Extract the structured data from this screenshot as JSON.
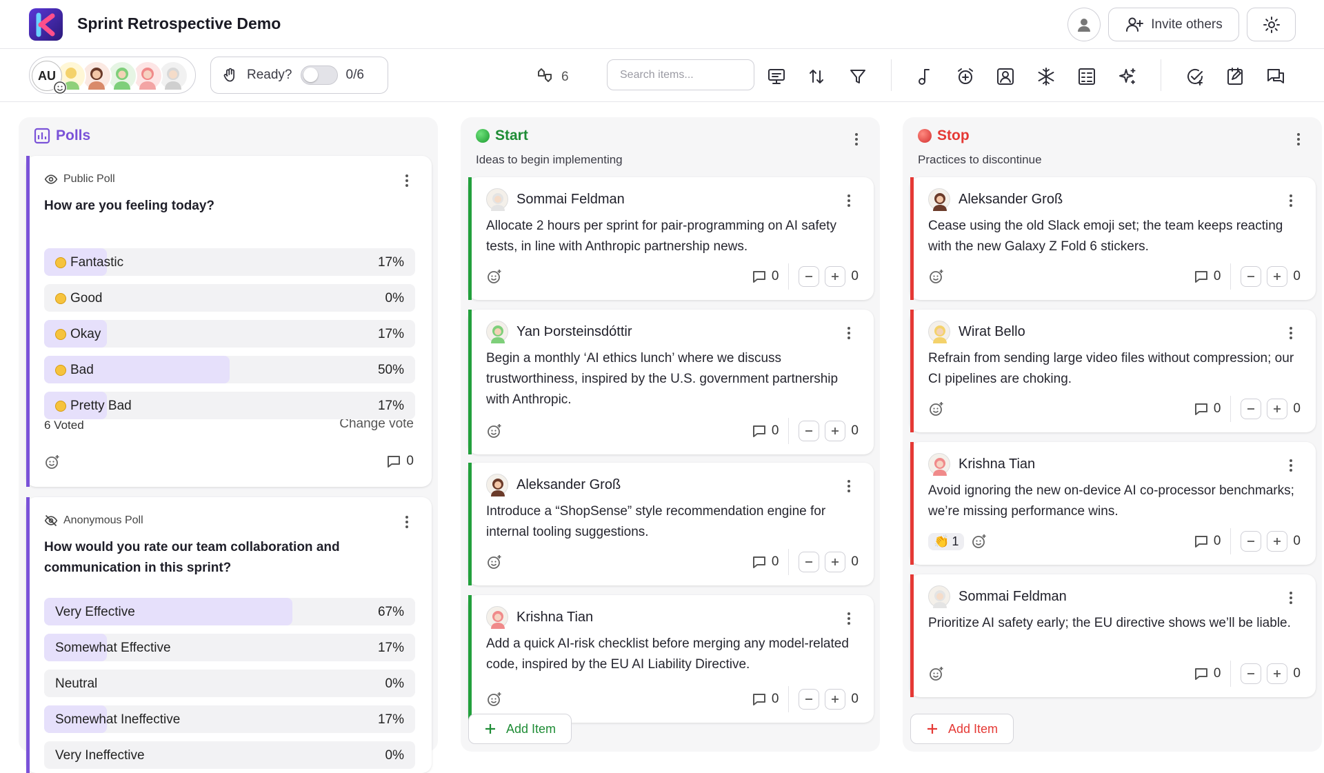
{
  "header": {
    "title": "Sprint Retrospective Demo",
    "invite_label": "Invite others",
    "logo_letter": "K"
  },
  "toolbar": {
    "avatar_initials": "AU",
    "ready_label": "Ready?",
    "ready_count": "0/6",
    "vote_count": "6",
    "search_placeholder": "Search items..."
  },
  "icons": [
    "logo",
    "user-icon",
    "invite-icon",
    "gear-icon",
    "smiley-add-icon",
    "hand-icon",
    "vote-icon",
    "presentation-icon",
    "sort-icon",
    "filter-icon",
    "music-icon",
    "alarm-icon",
    "portrait-icon",
    "snowflake-icon",
    "board-icon",
    "sparkle-icon",
    "check-circle-icon",
    "edit-note-icon",
    "chat-icon"
  ],
  "columns": {
    "polls": {
      "title": "Polls",
      "color": "#7a52d8",
      "poll1": {
        "type": "Public Poll",
        "question": "How are you feeling today?",
        "options": [
          {
            "label": "Fantastic",
            "pct": "17%",
            "value": 17
          },
          {
            "label": "Good",
            "pct": "0%",
            "value": 0
          },
          {
            "label": "Okay",
            "pct": "17%",
            "value": 17
          },
          {
            "label": "Bad",
            "pct": "50%",
            "value": 50
          },
          {
            "label": "Pretty Bad",
            "pct": "17%",
            "value": 17
          }
        ],
        "voted": "6 Voted",
        "change_vote": "Change vote",
        "comments": "0"
      },
      "poll2": {
        "type": "Anonymous Poll",
        "question": "How would you rate our team collaboration and communication in this sprint?",
        "options": [
          {
            "label": "Very Effective",
            "pct": "67%",
            "value": 67
          },
          {
            "label": "Somewhat Effective",
            "pct": "17%",
            "value": 17
          },
          {
            "label": "Neutral",
            "pct": "0%",
            "value": 0
          },
          {
            "label": "Somewhat Ineffective",
            "pct": "17%",
            "value": 17
          },
          {
            "label": "Very Ineffective",
            "pct": "0%",
            "value": 0
          }
        ]
      }
    },
    "start": {
      "title": "Start",
      "subtitle": "Ideas to begin implementing",
      "color": "#22a03c",
      "add_label": "Add Item",
      "cards": [
        {
          "author": "Sommai Feldman",
          "text": "Allocate 2 hours per sprint for pair-programming on AI safety tests, in line with Anthropic partnership news.",
          "comments": "0",
          "votes": "0"
        },
        {
          "author": "Yan Þorsteinsdóttir",
          "text": "Begin a monthly ‘AI ethics lunch’ where we discuss trustworthiness, inspired by the U.S. government partnership with Anthropic.",
          "comments": "0",
          "votes": "0"
        },
        {
          "author": "Aleksander Groß",
          "text": "Introduce a “ShopSense” style recommendation engine for internal tooling suggestions.",
          "comments": "0",
          "votes": "0"
        },
        {
          "author": "Krishna Tian",
          "text": "Add a quick AI-risk checklist before merging any model-related code, inspired by the EU AI Liability Directive.",
          "comments": "0",
          "votes": "0"
        }
      ]
    },
    "stop": {
      "title": "Stop",
      "subtitle": "Practices to discontinue",
      "color": "#e53935",
      "add_label": "Add Item",
      "cards": [
        {
          "author": "Aleksander Groß",
          "text": "Cease using the old Slack emoji set; the team keeps reacting with the new Galaxy Z Fold 6 stickers.",
          "comments": "0",
          "votes": "0"
        },
        {
          "author": "Wirat Bello",
          "text": "Refrain from sending large video files without compression; our CI pipelines are choking.",
          "comments": "0",
          "votes": "0"
        },
        {
          "author": "Krishna Tian",
          "text": "Avoid ignoring the new on-device AI co-processor benchmarks; we’re missing performance wins.",
          "comments": "0",
          "votes": "0",
          "reaction": "👏",
          "reaction_count": "1"
        },
        {
          "author": "Sommai Feldman",
          "text": "Prioritize AI safety early; the EU directive shows we’ll be liable.",
          "comments": "0",
          "votes": "0"
        }
      ]
    }
  }
}
